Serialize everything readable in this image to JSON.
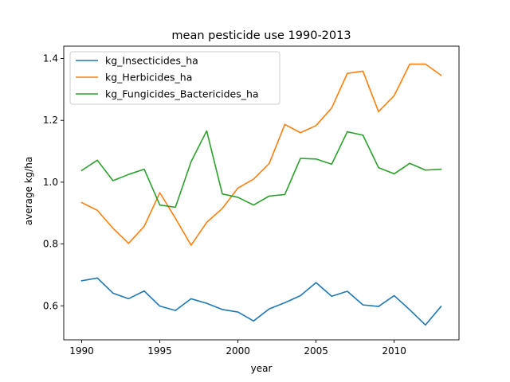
{
  "chart_data": {
    "type": "line",
    "title": "mean pesticide use 1990-2013",
    "xlabel": "year",
    "ylabel": "average kg/ha",
    "xlim": [
      1988.85,
      2014.15
    ],
    "ylim": [
      0.49,
      1.44
    ],
    "xticks": [
      1990,
      1995,
      2000,
      2005,
      2010
    ],
    "yticks": [
      0.6,
      0.8,
      1.0,
      1.2,
      1.4
    ],
    "ytick_labels": [
      "0.6",
      "0.8",
      "1.0",
      "1.2",
      "1.4"
    ],
    "grid": false,
    "legend": "top-left",
    "x": [
      1990,
      1991,
      1992,
      1993,
      1994,
      1995,
      1996,
      1997,
      1998,
      1999,
      2000,
      2001,
      2002,
      2003,
      2004,
      2005,
      2006,
      2007,
      2008,
      2009,
      2010,
      2011,
      2012,
      2013
    ],
    "series": [
      {
        "name": "kg_Insecticides_ha",
        "color": "#1f77b4",
        "values": [
          0.681,
          0.69,
          0.641,
          0.623,
          0.648,
          0.599,
          0.585,
          0.623,
          0.608,
          0.588,
          0.58,
          0.551,
          0.59,
          0.61,
          0.633,
          0.675,
          0.631,
          0.647,
          0.603,
          0.598,
          0.633,
          0.587,
          0.538,
          0.598
        ]
      },
      {
        "name": "kg_Herbicides_ha",
        "color": "#ff7f0e",
        "values": [
          0.934,
          0.909,
          0.851,
          0.802,
          0.857,
          0.966,
          0.883,
          0.796,
          0.87,
          0.915,
          0.981,
          1.01,
          1.06,
          1.187,
          1.16,
          1.183,
          1.24,
          1.352,
          1.359,
          1.228,
          1.28,
          1.382,
          1.382,
          1.346
        ]
      },
      {
        "name": "kg_Fungicides_Bactericides_ha",
        "color": "#2ca02c",
        "values": [
          1.038,
          1.071,
          1.005,
          1.025,
          1.042,
          0.926,
          0.919,
          1.066,
          1.166,
          0.962,
          0.951,
          0.926,
          0.955,
          0.96,
          1.077,
          1.075,
          1.058,
          1.163,
          1.152,
          1.047,
          1.027,
          1.061,
          1.039,
          1.042
        ]
      }
    ]
  }
}
